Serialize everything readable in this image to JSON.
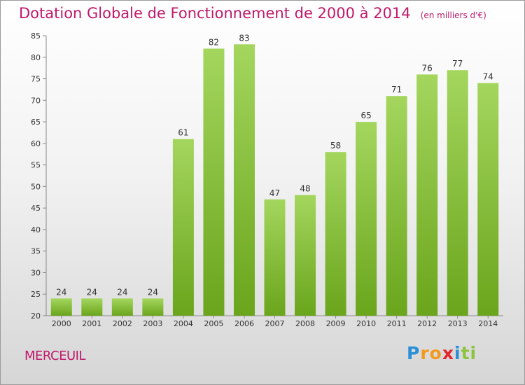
{
  "header": {
    "title": "Dotation Globale de Fonctionnement de 2000 à 2014",
    "unit": "(en milliers d'€)"
  },
  "footer": {
    "commune": "MERCEUIL",
    "logo_letters": [
      {
        "ch": "P",
        "color": "#2a8fd6"
      },
      {
        "ch": "r",
        "color": "#f39a1e"
      },
      {
        "ch": "o",
        "color": "#f39a1e"
      },
      {
        "ch": "x",
        "color": "#e2262a"
      },
      {
        "ch": "i",
        "color": "#2a8fd6"
      },
      {
        "ch": "t",
        "color": "#8cc43e"
      },
      {
        "ch": "i",
        "color": "#8cc43e"
      }
    ]
  },
  "chart_data": {
    "type": "bar",
    "title": "Dotation Globale de Fonctionnement de 2000 à 2014",
    "subtitle": "(en milliers d'€)",
    "categories": [
      "2000",
      "2001",
      "2002",
      "2003",
      "2004",
      "2005",
      "2006",
      "2007",
      "2008",
      "2009",
      "2010",
      "2011",
      "2012",
      "2013",
      "2014"
    ],
    "values": [
      24,
      24,
      24,
      24,
      61,
      82,
      83,
      47,
      48,
      58,
      65,
      71,
      76,
      77,
      74
    ],
    "xlabel": "",
    "ylabel": "",
    "ylim": [
      20,
      85
    ],
    "yticks": [
      20,
      25,
      30,
      35,
      40,
      45,
      50,
      55,
      60,
      65,
      70,
      75,
      80,
      85
    ],
    "grid": false,
    "legend": "none",
    "bar_color_light": "#a4d65e",
    "bar_color_dark": "#6aa51c"
  }
}
